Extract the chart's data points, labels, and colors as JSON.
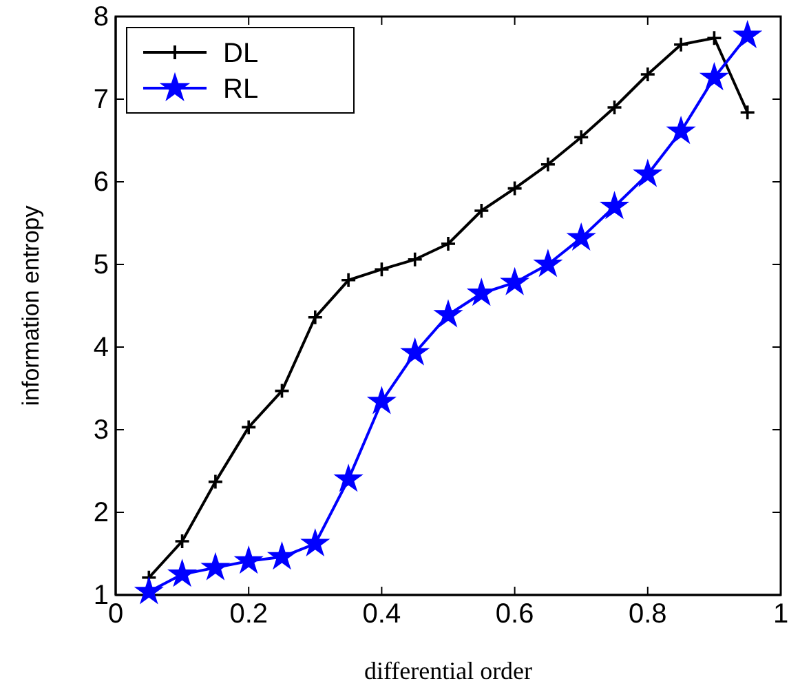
{
  "chart_data": {
    "type": "line",
    "xlabel": "differential order",
    "ylabel": "information entropy",
    "x": [
      0.05,
      0.1,
      0.15,
      0.2,
      0.25,
      0.3,
      0.35,
      0.4,
      0.45,
      0.5,
      0.55,
      0.6,
      0.65,
      0.7,
      0.75,
      0.8,
      0.85,
      0.9,
      0.95
    ],
    "series": [
      {
        "name": "DL",
        "color": "#000000",
        "marker": "cross",
        "values": [
          1.21,
          1.65,
          2.37,
          3.03,
          3.47,
          4.36,
          4.81,
          4.94,
          5.06,
          5.25,
          5.65,
          5.92,
          6.21,
          6.54,
          6.9,
          7.3,
          7.66,
          7.74,
          6.84
        ]
      },
      {
        "name": "RL",
        "color": "#0000ff",
        "marker": "star",
        "values": [
          1.04,
          1.25,
          1.33,
          1.41,
          1.46,
          1.62,
          2.4,
          3.34,
          3.93,
          4.39,
          4.65,
          4.78,
          5.0,
          5.32,
          5.7,
          6.09,
          6.61,
          7.26,
          7.77
        ]
      }
    ],
    "xlim": [
      0,
      1
    ],
    "xticks": [
      0,
      {
        "value": 0.2,
        "label": "0.2"
      },
      {
        "value": 0.4,
        "label": "0.4"
      },
      {
        "value": 0.6,
        "label": "0.6"
      },
      {
        "value": 0.8,
        "label": "0.8"
      },
      1
    ],
    "ylim": [
      1,
      8
    ],
    "yticks": [
      1,
      2,
      3,
      4,
      5,
      6,
      7,
      8
    ],
    "grid": false,
    "legend": "top left",
    "line_style": "solid"
  }
}
